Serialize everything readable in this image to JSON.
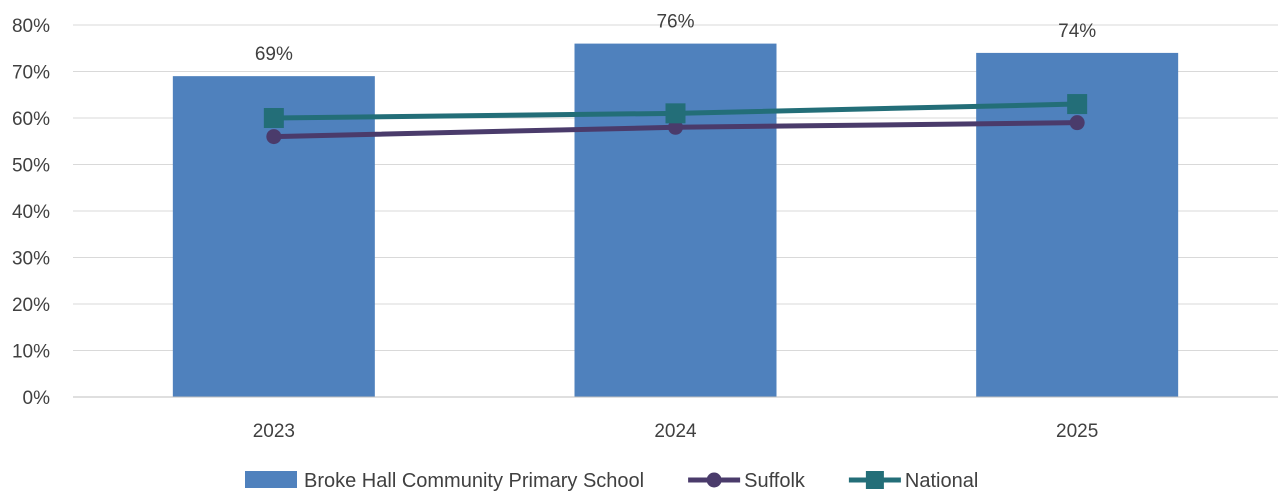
{
  "chart_data": {
    "type": "bar",
    "categories": [
      "2023",
      "2024",
      "2025"
    ],
    "ylim": [
      0,
      80
    ],
    "yticks": [
      0,
      10,
      20,
      30,
      40,
      50,
      60,
      70,
      80
    ],
    "ytick_labels": [
      "0%",
      "10%",
      "20%",
      "30%",
      "40%",
      "50%",
      "60%",
      "70%",
      "80%"
    ],
    "grid": true,
    "legend_position": "bottom",
    "series": [
      {
        "name": "Broke Hall Community Primary School",
        "type": "bar",
        "values": [
          69,
          76,
          74
        ],
        "data_labels": [
          "69%",
          "76%",
          "74%"
        ],
        "color": "#4F81BD"
      },
      {
        "name": "Suffolk",
        "type": "line",
        "marker": "circle",
        "values": [
          56,
          58,
          59
        ],
        "color": "#4A3B6B"
      },
      {
        "name": "National",
        "type": "line",
        "marker": "square",
        "values": [
          60,
          61,
          63
        ],
        "color": "#236E78"
      }
    ]
  }
}
